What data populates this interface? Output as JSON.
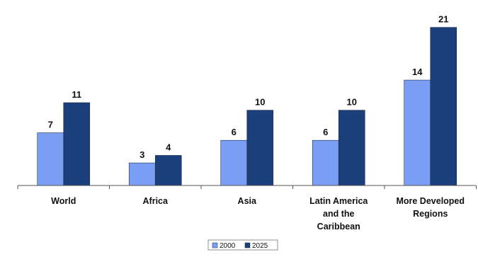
{
  "chart_data": {
    "type": "bar",
    "categories": [
      [
        "World"
      ],
      [
        "Africa"
      ],
      [
        "Asia"
      ],
      [
        "Latin America",
        "and the",
        "Caribbean"
      ],
      [
        "More Developed",
        "Regions"
      ]
    ],
    "series": [
      {
        "name": "2000",
        "values": [
          7,
          3,
          6,
          6,
          14
        ],
        "color": "#7b9ef5"
      },
      {
        "name": "2025",
        "values": [
          11,
          4,
          10,
          10,
          21
        ],
        "color": "#1a3f7a"
      }
    ],
    "ylim": [
      0,
      22
    ],
    "grid": false,
    "legend": "bottom-center",
    "title": "",
    "xlabel": "",
    "ylabel": ""
  }
}
